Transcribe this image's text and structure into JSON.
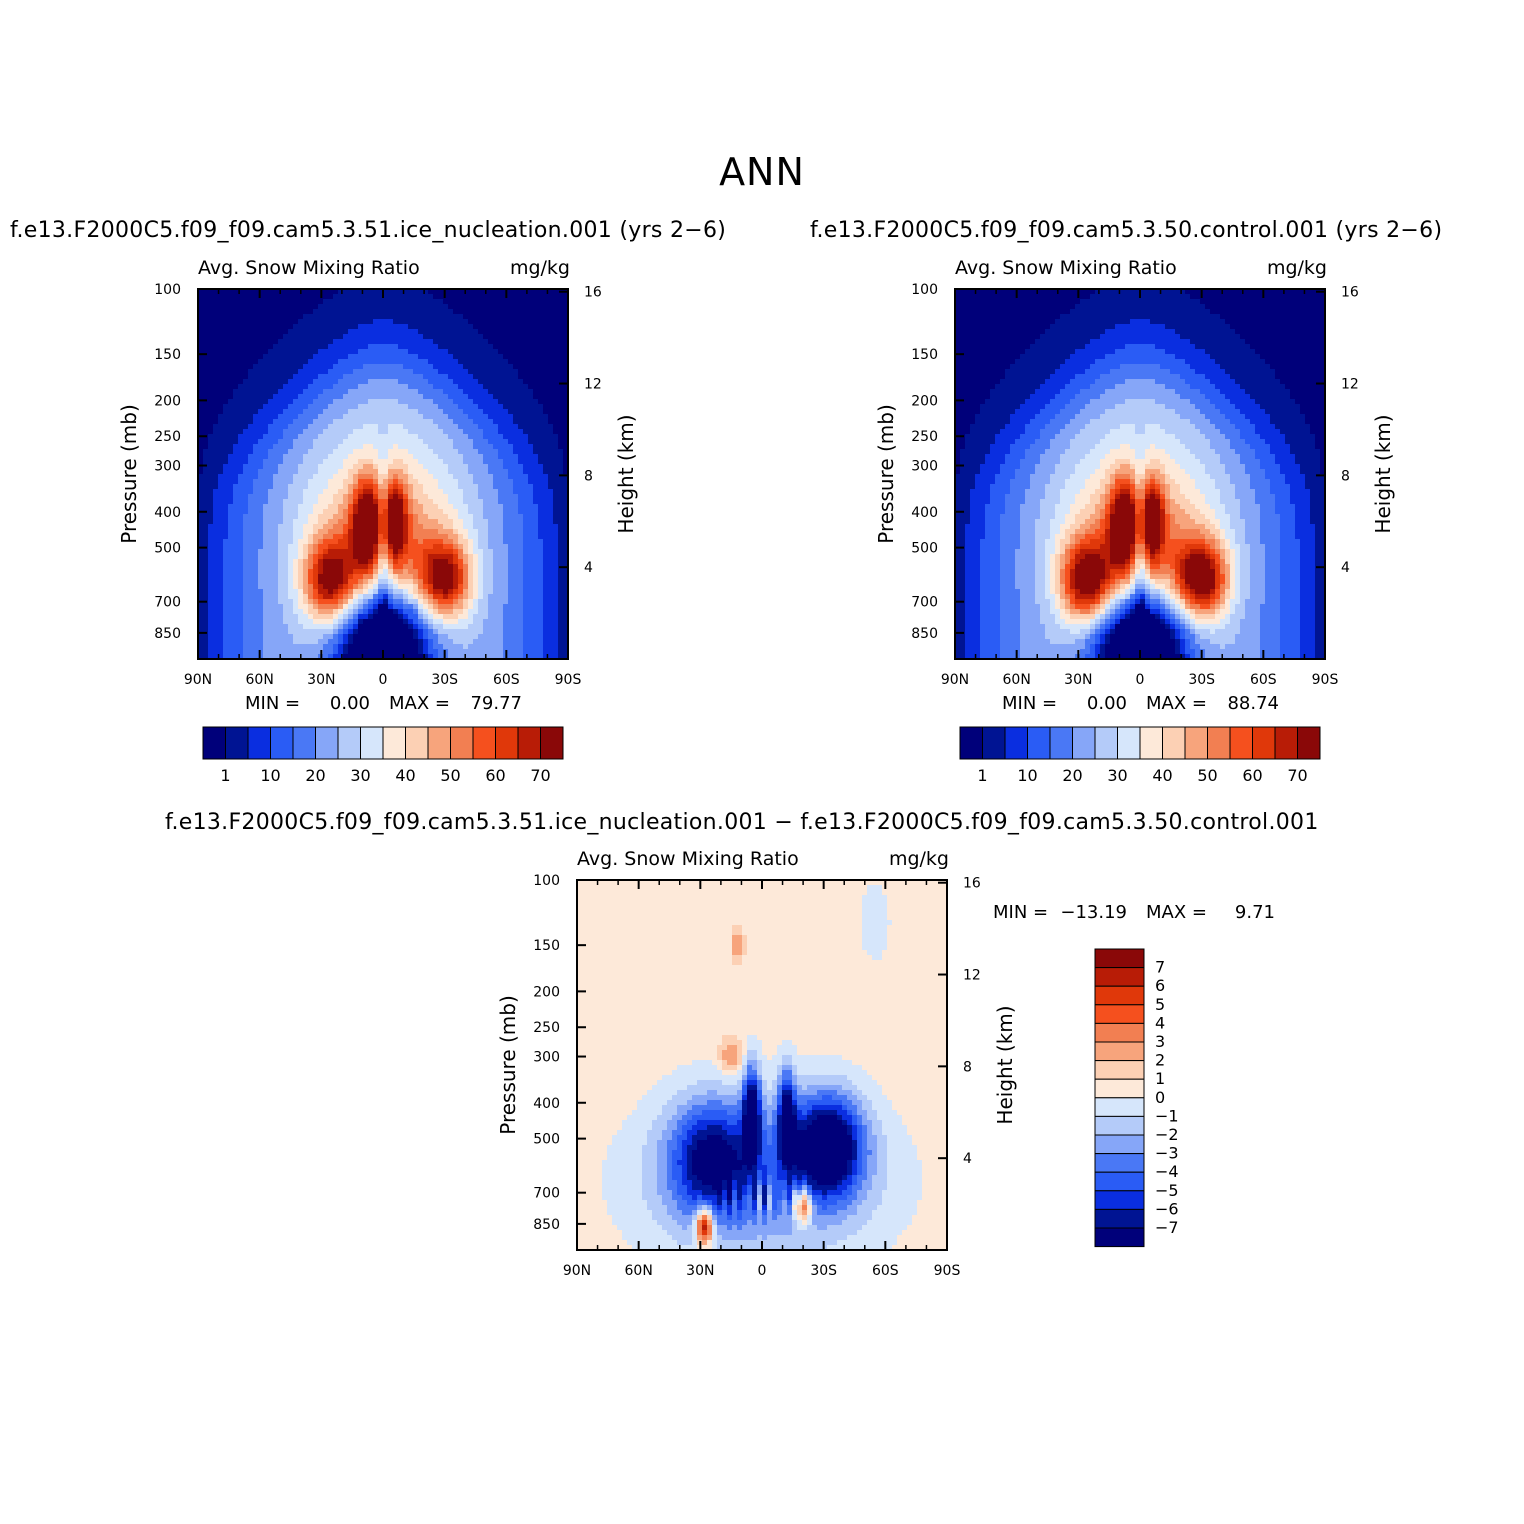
{
  "figure": {
    "title": "ANN"
  },
  "panels": [
    {
      "case_title": "f.e13.F2000C5.f09_f09.cam5.3.51.ice_nucleation.001  (yrs  2−6)",
      "variable": "Avg.  Snow  Mixing  Ratio",
      "units": "mg/kg",
      "min_label": "MIN  =",
      "min_value": "0.00",
      "max_label": "MAX  =",
      "max_value": "79.77"
    },
    {
      "case_title": "f.e13.F2000C5.f09_f09.cam5.3.50.control.001  (yrs  2−6)",
      "variable": "Avg.  Snow  Mixing  Ratio",
      "units": "mg/kg",
      "min_label": "MIN  =",
      "min_value": "0.00",
      "max_label": "MAX  =",
      "max_value": "88.74"
    },
    {
      "case_title": "f.e13.F2000C5.f09_f09.cam5.3.51.ice_nucleation.001  −  f.e13.F2000C5.f09_f09.cam5.3.50.control.001",
      "variable": "Avg.  Snow  Mixing  Ratio",
      "units": "mg/kg",
      "min_label": "MIN  =",
      "min_value": "−13.19",
      "max_label": "MAX  =",
      "max_value": "9.71"
    }
  ],
  "axes": {
    "ylabel_left": "Pressure  (mb)",
    "ylabel_right": "Height  (km)"
  },
  "chart_data": [
    {
      "type": "heatmap",
      "name": "ice_nucleation",
      "x_ticks": [
        "90N",
        "60N",
        "30N",
        "0",
        "30S",
        "60S",
        "90S"
      ],
      "x_range": [
        90,
        -90
      ],
      "pressure_ticks": [
        100,
        150,
        200,
        250,
        300,
        400,
        500,
        700,
        850
      ],
      "pressure_range": [
        100,
        1000
      ],
      "height_ticks": [
        16,
        12,
        8,
        4
      ],
      "colorbar_labels": [
        "1",
        "10",
        "20",
        "30",
        "40",
        "50",
        "60",
        "70"
      ],
      "colorbar_colors": [
        "#00007a",
        "#001493",
        "#0a2ee0",
        "#2a5cf5",
        "#4a78f5",
        "#86a6f8",
        "#b4cbf9",
        "#d6e6fb",
        "#fde9d9",
        "#fcd0b4",
        "#f7a47c",
        "#f27f52",
        "#f5501e",
        "#e0380a",
        "#b81c06",
        "#8a0808"
      ],
      "max": 79.77,
      "min": 0.0,
      "max_lobe_scale": 1.0
    },
    {
      "type": "heatmap",
      "name": "control",
      "x_ticks": [
        "90N",
        "60N",
        "30N",
        "0",
        "30S",
        "60S",
        "90S"
      ],
      "x_range": [
        90,
        -90
      ],
      "pressure_ticks": [
        100,
        150,
        200,
        250,
        300,
        400,
        500,
        700,
        850
      ],
      "pressure_range": [
        100,
        1000
      ],
      "height_ticks": [
        16,
        12,
        8,
        4
      ],
      "colorbar_labels": [
        "1",
        "10",
        "20",
        "30",
        "40",
        "50",
        "60",
        "70"
      ],
      "colorbar_colors": [
        "#00007a",
        "#001493",
        "#0a2ee0",
        "#2a5cf5",
        "#4a78f5",
        "#86a6f8",
        "#b4cbf9",
        "#d6e6fb",
        "#fde9d9",
        "#fcd0b4",
        "#f7a47c",
        "#f27f52",
        "#f5501e",
        "#e0380a",
        "#b81c06",
        "#8a0808"
      ],
      "max": 88.74,
      "min": 0.0,
      "max_lobe_scale": 1.11
    },
    {
      "type": "heatmap",
      "name": "difference",
      "x_ticks": [
        "90N",
        "60N",
        "30N",
        "0",
        "30S",
        "60S",
        "90S"
      ],
      "x_range": [
        90,
        -90
      ],
      "pressure_ticks": [
        100,
        150,
        200,
        250,
        300,
        400,
        500,
        700,
        850
      ],
      "pressure_range": [
        100,
        1000
      ],
      "height_ticks": [
        16,
        12,
        8,
        4
      ],
      "colorbar_labels": [
        "7",
        "6",
        "5",
        "4",
        "3",
        "2",
        "1",
        "0",
        "−1",
        "−2",
        "−3",
        "−4",
        "−5",
        "−6",
        "−7"
      ],
      "colorbar_colors": [
        "#8a0808",
        "#b81c06",
        "#e0380a",
        "#f5501e",
        "#f27f52",
        "#f7a47c",
        "#fcd0b4",
        "#fde9d9",
        "#d6e6fb",
        "#b4cbf9",
        "#86a6f8",
        "#4a78f5",
        "#2a5cf5",
        "#0a2ee0",
        "#001493",
        "#00007a"
      ],
      "max": 9.71,
      "min": -13.19
    }
  ]
}
